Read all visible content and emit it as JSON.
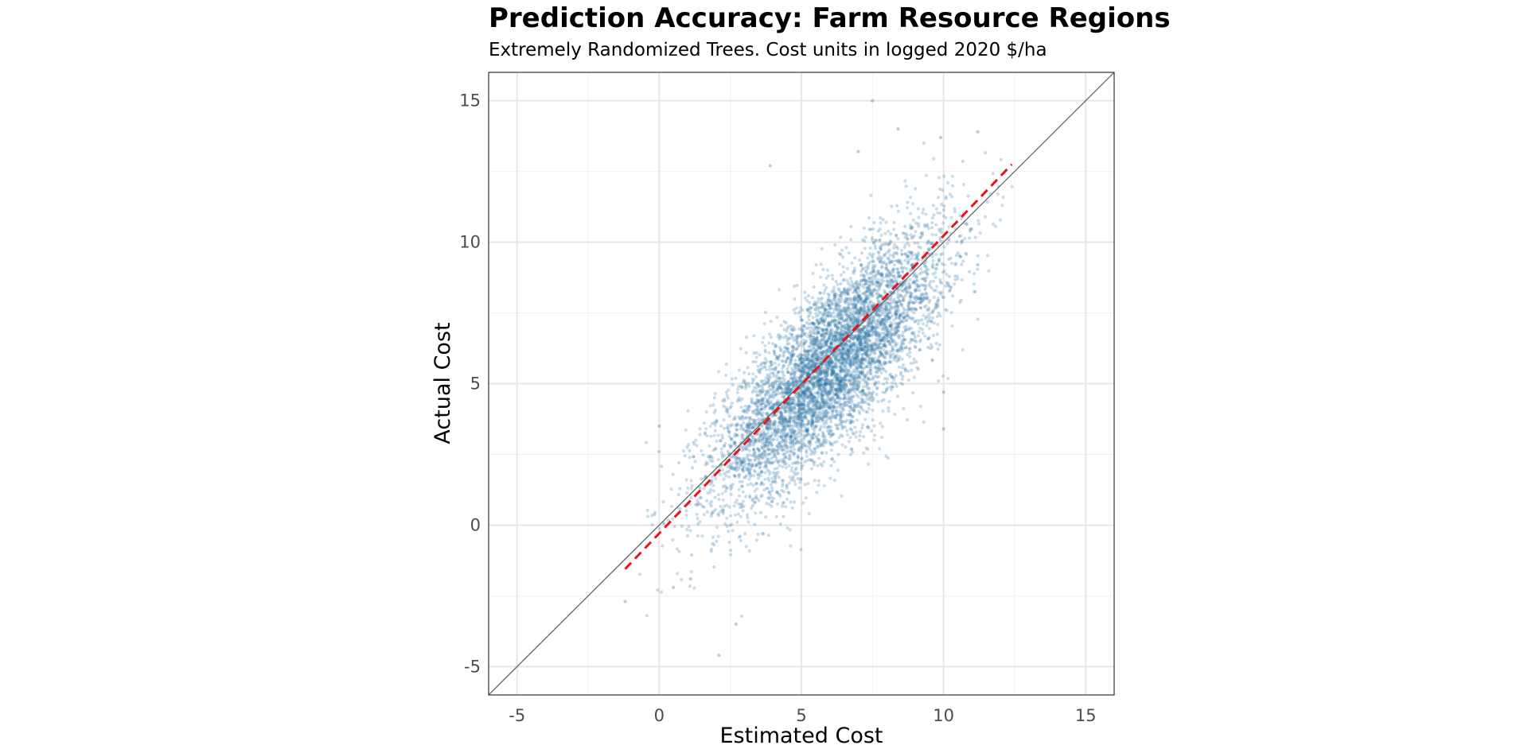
{
  "chart_data": {
    "type": "scatter",
    "title": "Prediction Accuracy: Farm Resource Regions",
    "subtitle": "Extremely Randomized Trees. Cost units in logged 2020 $/ha",
    "xlabel": "Estimated Cost",
    "ylabel": "Actual Cost",
    "xlim": [
      -6,
      16
    ],
    "ylim": [
      -6,
      16
    ],
    "x_ticks": [
      -5,
      0,
      5,
      10,
      15
    ],
    "y_ticks": [
      -5,
      0,
      5,
      10,
      15
    ],
    "x_tick_labels": [
      "-5",
      "0",
      "5",
      "10",
      "15"
    ],
    "y_tick_labels": [
      "-5",
      "0",
      "5",
      "10",
      "15"
    ],
    "grid": true,
    "point_color": "#2f77a8",
    "point_opacity": 0.25,
    "point_cloud": {
      "description_points": "dense elongated cloud along the identity line",
      "approx_count": 6000,
      "x_mean": 6.0,
      "x_sd": 2.0,
      "y_mean": 5.6,
      "y_sd": 2.3,
      "correlation": 0.78,
      "x_range": [
        -1.2,
        12.5
      ],
      "y_range": [
        -4.6,
        15.0
      ]
    },
    "outliers": [
      {
        "x": 7.5,
        "y": 15.0
      },
      {
        "x": 8.4,
        "y": 14.0
      },
      {
        "x": 11.2,
        "y": 13.9
      },
      {
        "x": 9.9,
        "y": 13.7
      },
      {
        "x": 3.9,
        "y": 12.7
      },
      {
        "x": 7.0,
        "y": 13.2
      },
      {
        "x": -1.2,
        "y": -2.7
      },
      {
        "x": 2.1,
        "y": -4.6
      },
      {
        "x": 2.7,
        "y": -3.5
      },
      {
        "x": 0.0,
        "y": 3.5
      },
      {
        "x": 10.0,
        "y": 3.4
      },
      {
        "x": 10.0,
        "y": 4.7
      },
      {
        "x": 11.2,
        "y": 9.2
      },
      {
        "x": 0.5,
        "y": -2.2
      },
      {
        "x": 1.1,
        "y": -1.9
      }
    ],
    "identity_line": {
      "x": [
        -6,
        16
      ],
      "y": [
        -6,
        16
      ],
      "color": "#666666"
    },
    "fit_line": {
      "x": [
        -1.2,
        12.4
      ],
      "y": [
        -1.55,
        12.75
      ],
      "color": "#e8141c",
      "style": "dashed"
    }
  }
}
